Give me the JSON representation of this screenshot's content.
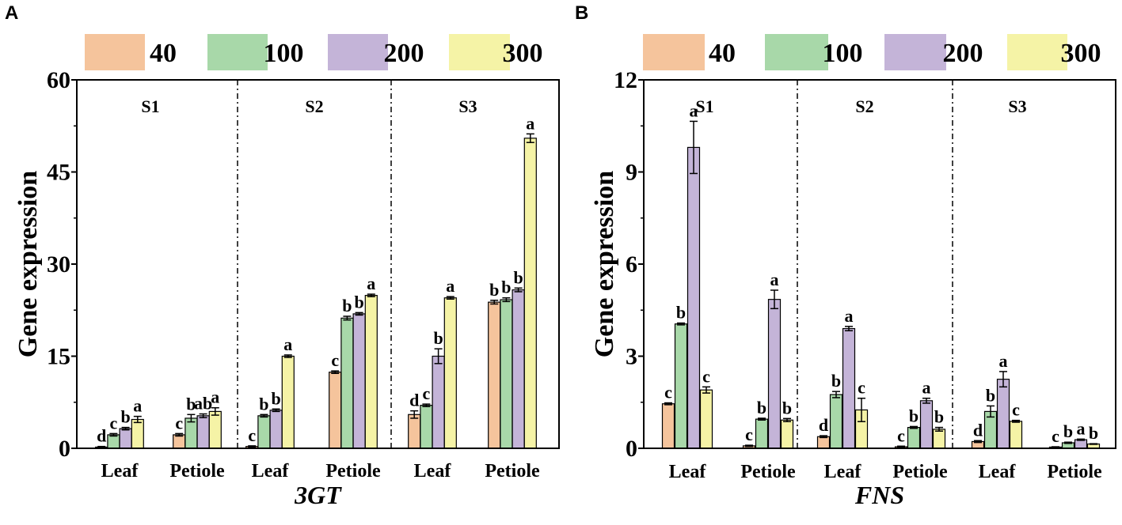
{
  "colors": {
    "40": "#F5C49C",
    "100": "#A8D8A9",
    "200": "#C4B4D8",
    "300": "#F5F3A6",
    "axis": "#000000"
  },
  "chart_data": [
    {
      "panel": "A",
      "type": "bar",
      "title": "",
      "xlabel": "3GT",
      "ylabel": "Gene expression",
      "ylim": [
        0,
        60
      ],
      "yticks": [
        "0",
        "15",
        "30",
        "45",
        "60"
      ],
      "legend": [
        "40",
        "100",
        "200",
        "300"
      ],
      "stages": [
        "S1",
        "S2",
        "S3"
      ],
      "categories": [
        "Leaf",
        "Petiole",
        "Leaf",
        "Petiole",
        "Leaf",
        "Petiole"
      ],
      "series": [
        {
          "name": "40",
          "values": [
            0.2,
            2.2,
            0.3,
            12.4,
            5.5,
            23.8
          ],
          "errors": [
            0.1,
            0.2,
            0.1,
            0.2,
            0.6,
            0.3
          ]
        },
        {
          "name": "100",
          "values": [
            2.2,
            4.9,
            5.3,
            21.2,
            7.0,
            24.2
          ],
          "errors": [
            0.2,
            0.6,
            0.2,
            0.3,
            0.2,
            0.3
          ]
        },
        {
          "name": "200",
          "values": [
            3.2,
            5.3,
            6.2,
            21.9,
            15.0,
            25.8
          ],
          "errors": [
            0.2,
            0.3,
            0.2,
            0.2,
            1.2,
            0.3
          ]
        },
        {
          "name": "300",
          "values": [
            4.7,
            6.0,
            15.0,
            24.9,
            24.5,
            50.5
          ],
          "errors": [
            0.5,
            0.6,
            0.2,
            0.2,
            0.2,
            0.7
          ]
        }
      ],
      "letters": [
        [
          "d",
          "c",
          "c",
          "c",
          "d",
          "b"
        ],
        [
          "c",
          "b",
          "b",
          "b",
          "c",
          "b"
        ],
        [
          "b",
          "ab",
          "b",
          "b",
          "b",
          "b"
        ],
        [
          "a",
          "a",
          "a",
          "a",
          "a",
          "a"
        ]
      ]
    },
    {
      "panel": "B",
      "type": "bar",
      "title": "",
      "xlabel": "FNS",
      "ylabel": "Gene expression",
      "ylim": [
        0,
        12
      ],
      "yticks": [
        "0",
        "3",
        "6",
        "9",
        "12"
      ],
      "legend": [
        "40",
        "100",
        "200",
        "300"
      ],
      "stages": [
        "S1",
        "S2",
        "S3"
      ],
      "categories": [
        "Leaf",
        "Petiole",
        "Leaf",
        "Petiole",
        "Leaf",
        "Petiole"
      ],
      "series": [
        {
          "name": "40",
          "values": [
            1.45,
            0.08,
            0.38,
            0.05,
            0.22,
            0.04
          ],
          "errors": [
            0.03,
            0.02,
            0.03,
            0.02,
            0.03,
            0.01
          ]
        },
        {
          "name": "100",
          "values": [
            4.05,
            0.95,
            1.75,
            0.68,
            1.2,
            0.18
          ],
          "errors": [
            0.03,
            0.03,
            0.1,
            0.03,
            0.18,
            0.02
          ]
        },
        {
          "name": "200",
          "values": [
            9.8,
            4.85,
            3.9,
            1.55,
            2.25,
            0.28
          ],
          "errors": [
            0.85,
            0.3,
            0.07,
            0.08,
            0.25,
            0.02
          ]
        },
        {
          "name": "300",
          "values": [
            1.9,
            0.92,
            1.25,
            0.62,
            0.88,
            0.14
          ],
          "errors": [
            0.1,
            0.05,
            0.38,
            0.06,
            0.03,
            0.01
          ]
        }
      ],
      "letters": [
        [
          "c",
          "c",
          "d",
          "c",
          "d",
          "c"
        ],
        [
          "b",
          "b",
          "b",
          "b",
          "b",
          "b"
        ],
        [
          "a",
          "a",
          "a",
          "a",
          "a",
          "a"
        ],
        [
          "c",
          "b",
          "c",
          "b",
          "c",
          "b"
        ]
      ]
    }
  ]
}
